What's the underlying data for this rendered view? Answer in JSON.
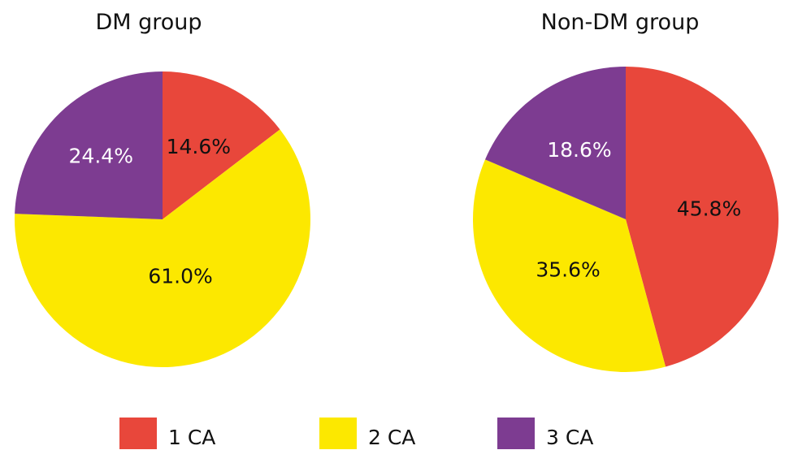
{
  "chart_data": [
    {
      "type": "pie",
      "title": "DM group",
      "categories": [
        "1 CA",
        "2 CA",
        "3 CA"
      ],
      "values": [
        14.6,
        61.0,
        24.4
      ],
      "labels": [
        "14.6%",
        "61.0%",
        "24.4%"
      ]
    },
    {
      "type": "pie",
      "title": "Non-DM group",
      "categories": [
        "1 CA",
        "2 CA",
        "3 CA"
      ],
      "values": [
        45.8,
        35.6,
        18.6
      ],
      "labels": [
        "45.8%",
        "35.6%",
        "18.6%"
      ]
    }
  ],
  "legend": {
    "position": "bottom",
    "items": [
      {
        "label": "1 CA",
        "color": "#E8473B"
      },
      {
        "label": "2 CA",
        "color": "#FCE800"
      },
      {
        "label": "3 CA",
        "color": "#7D3C91"
      }
    ]
  },
  "label_colors": [
    "#111111",
    "#111111",
    "#ffffff"
  ]
}
